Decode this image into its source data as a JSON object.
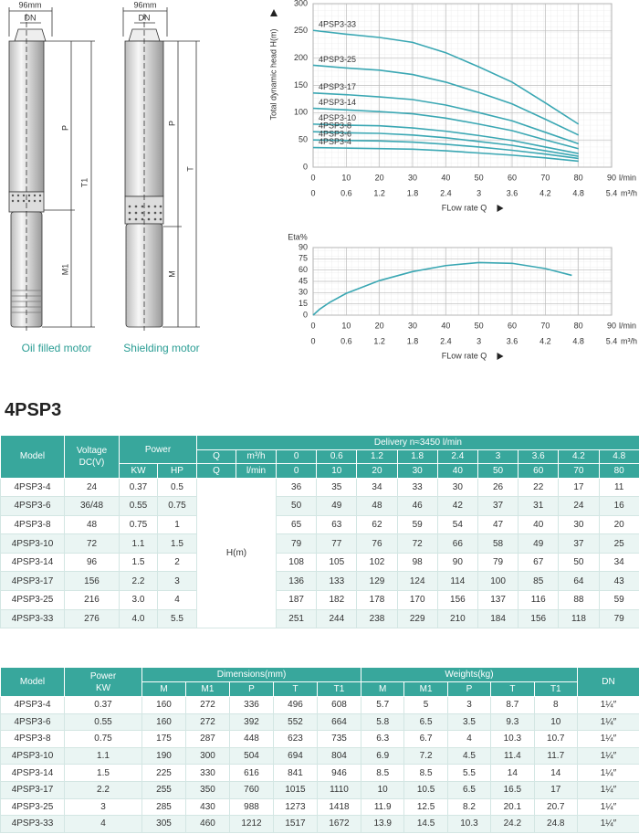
{
  "drawings": {
    "left": {
      "width": "96mm",
      "dn": "DN",
      "p": "P",
      "t": "T1",
      "m": "M1",
      "caption": "Oil filled motor"
    },
    "right": {
      "width": "96mm",
      "dn": "DN",
      "p": "P",
      "t": "T",
      "m": "M",
      "caption": "Shielding motor"
    }
  },
  "chart_data": [
    {
      "type": "line",
      "ylabel": "Total dynamic head H(m)",
      "xlabel": "FLow rate Q",
      "xunit": "l/min",
      "x2unit": "m³/h",
      "xlim": [
        0,
        90
      ],
      "xticks": [
        0,
        10,
        20,
        30,
        40,
        50,
        60,
        70,
        80,
        90
      ],
      "x2lim": [
        0,
        5.4
      ],
      "x2ticks": [
        0,
        0.6,
        1.2,
        1.8,
        2.4,
        3,
        3.6,
        4.2,
        4.8,
        5.4
      ],
      "ylim": [
        0,
        300
      ],
      "yticks": [
        0,
        50,
        100,
        150,
        200,
        250,
        300
      ],
      "grid": true,
      "color": "#3aa7b3",
      "x": [
        0,
        10,
        20,
        30,
        40,
        50,
        60,
        70,
        80
      ],
      "series": [
        {
          "name": "4PSP3-33",
          "values": [
            251,
            244,
            238,
            229,
            210,
            184,
            156,
            118,
            79
          ]
        },
        {
          "name": "4PSP3-25",
          "values": [
            187,
            182,
            178,
            170,
            156,
            137,
            116,
            88,
            59
          ]
        },
        {
          "name": "4PSP3-17",
          "values": [
            136,
            133,
            129,
            124,
            114,
            100,
            85,
            64,
            43
          ]
        },
        {
          "name": "4PSP3-14",
          "values": [
            108,
            105,
            102,
            98,
            90,
            79,
            67,
            50,
            34
          ]
        },
        {
          "name": "4PSP3-10",
          "values": [
            79,
            77,
            76,
            72,
            66,
            58,
            49,
            37,
            25
          ]
        },
        {
          "name": "4PSP3-8",
          "values": [
            65,
            63,
            62,
            59,
            54,
            47,
            40,
            30,
            20
          ]
        },
        {
          "name": "4PSP3-6",
          "values": [
            50,
            49,
            48,
            46,
            42,
            37,
            31,
            24,
            16
          ]
        },
        {
          "name": "4PSP3-4",
          "values": [
            36,
            35,
            34,
            33,
            30,
            26,
            22,
            17,
            11
          ]
        }
      ]
    },
    {
      "type": "line",
      "ylabel": "Eta%",
      "xlabel": "FLow rate Q",
      "xunit": "l/min",
      "x2unit": "m³/h",
      "xlim": [
        0,
        90
      ],
      "xticks": [
        0,
        10,
        20,
        30,
        40,
        50,
        60,
        70,
        80,
        90
      ],
      "x2lim": [
        0,
        5.4
      ],
      "x2ticks": [
        0,
        0.6,
        1.2,
        1.8,
        2.4,
        3,
        3.6,
        4.2,
        4.8,
        5.4
      ],
      "ylim": [
        0,
        90
      ],
      "yticks": [
        0,
        15,
        30,
        45,
        60,
        75,
        90
      ],
      "grid": true,
      "color": "#3aa7b3",
      "x": [
        0,
        2,
        5,
        10,
        20,
        30,
        40,
        50,
        60,
        70,
        78
      ],
      "series": [
        {
          "values": [
            0,
            8,
            17,
            29,
            46,
            58,
            66,
            70,
            69,
            62,
            53
          ]
        }
      ]
    }
  ],
  "pump_table": {
    "title": "4PSP3",
    "headers": {
      "model": "Model",
      "voltage": "Voltage\nDC(V)",
      "power": "Power",
      "kw": "KW",
      "hp": "HP",
      "delivery": "Delivery    n≈3450  l/min",
      "q": "Q",
      "unit_m3h": "m³/h",
      "unit_lmin": "l/min",
      "head": "H(m)",
      "flow_m3h": [
        "0",
        "0.6",
        "1.2",
        "1.8",
        "2.4",
        "3",
        "3.6",
        "4.2",
        "4.8"
      ],
      "flow_lmin": [
        "0",
        "10",
        "20",
        "30",
        "40",
        "50",
        "60",
        "70",
        "80"
      ]
    },
    "rows": [
      [
        "4PSP3-4",
        "24",
        "0.37",
        "0.5",
        "36",
        "35",
        "34",
        "33",
        "30",
        "26",
        "22",
        "17",
        "11"
      ],
      [
        "4PSP3-6",
        "36/48",
        "0.55",
        "0.75",
        "50",
        "49",
        "48",
        "46",
        "42",
        "37",
        "31",
        "24",
        "16"
      ],
      [
        "4PSP3-8",
        "48",
        "0.75",
        "1",
        "65",
        "63",
        "62",
        "59",
        "54",
        "47",
        "40",
        "30",
        "20"
      ],
      [
        "4PSP3-10",
        "72",
        "1.1",
        "1.5",
        "79",
        "77",
        "76",
        "72",
        "66",
        "58",
        "49",
        "37",
        "25"
      ],
      [
        "4PSP3-14",
        "96",
        "1.5",
        "2",
        "108",
        "105",
        "102",
        "98",
        "90",
        "79",
        "67",
        "50",
        "34"
      ],
      [
        "4PSP3-17",
        "156",
        "2.2",
        "3",
        "136",
        "133",
        "129",
        "124",
        "114",
        "100",
        "85",
        "64",
        "43"
      ],
      [
        "4PSP3-25",
        "216",
        "3.0",
        "4",
        "187",
        "182",
        "178",
        "170",
        "156",
        "137",
        "116",
        "88",
        "59"
      ],
      [
        "4PSP3-33",
        "276",
        "4.0",
        "5.5",
        "251",
        "244",
        "238",
        "229",
        "210",
        "184",
        "156",
        "118",
        "79"
      ]
    ]
  },
  "dims_table": {
    "headers": {
      "model": "Model",
      "power": "Power\nKW",
      "dimensions": "Dimensions(mm)",
      "weights": "Weights(kg)",
      "dn": "DN",
      "dim_cols": [
        "M",
        "M1",
        "P",
        "T",
        "T1"
      ],
      "weight_cols": [
        "M",
        "M1",
        "P",
        "T",
        "T1"
      ]
    },
    "rows": [
      [
        "4PSP3-4",
        "0.37",
        "160",
        "272",
        "336",
        "496",
        "608",
        "5.7",
        "5",
        "3",
        "8.7",
        "8",
        "1¼″"
      ],
      [
        "4PSP3-6",
        "0.55",
        "160",
        "272",
        "392",
        "552",
        "664",
        "5.8",
        "6.5",
        "3.5",
        "9.3",
        "10",
        "1¼″"
      ],
      [
        "4PSP3-8",
        "0.75",
        "175",
        "287",
        "448",
        "623",
        "735",
        "6.3",
        "6.7",
        "4",
        "10.3",
        "10.7",
        "1¼″"
      ],
      [
        "4PSP3-10",
        "1.1",
        "190",
        "300",
        "504",
        "694",
        "804",
        "6.9",
        "7.2",
        "4.5",
        "11.4",
        "11.7",
        "1¼″"
      ],
      [
        "4PSP3-14",
        "1.5",
        "225",
        "330",
        "616",
        "841",
        "946",
        "8.5",
        "8.5",
        "5.5",
        "14",
        "14",
        "1¼″"
      ],
      [
        "4PSP3-17",
        "2.2",
        "255",
        "350",
        "760",
        "1015",
        "1110",
        "10",
        "10.5",
        "6.5",
        "16.5",
        "17",
        "1¼″"
      ],
      [
        "4PSP3-25",
        "3",
        "285",
        "430",
        "988",
        "1273",
        "1418",
        "11.9",
        "12.5",
        "8.2",
        "20.1",
        "20.7",
        "1¼″"
      ],
      [
        "4PSP3-33",
        "4",
        "305",
        "460",
        "1212",
        "1517",
        "1672",
        "13.9",
        "14.5",
        "10.3",
        "24.2",
        "24.8",
        "1¼″"
      ]
    ]
  }
}
